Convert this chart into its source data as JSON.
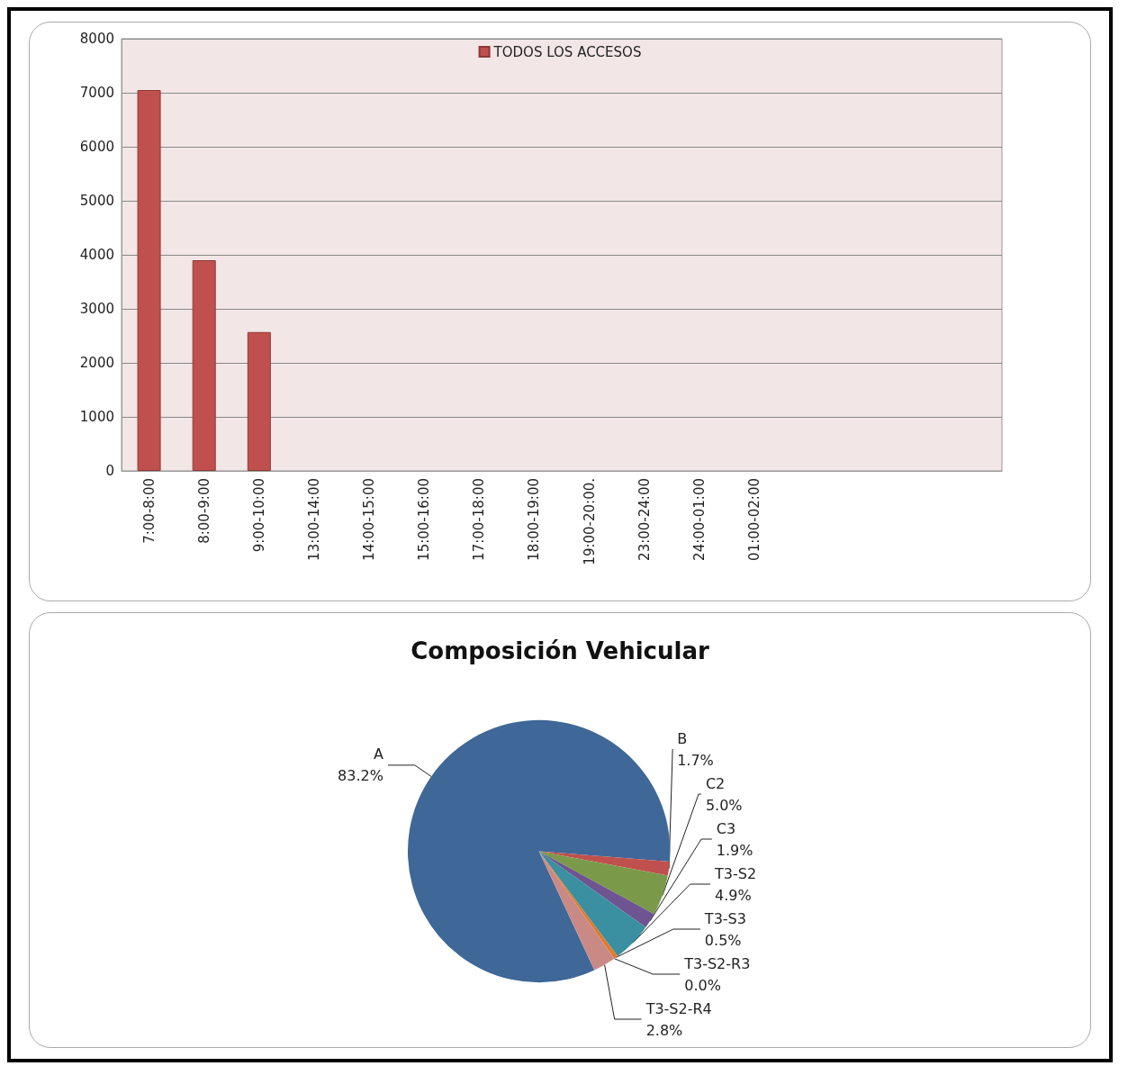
{
  "chart_data": [
    {
      "type": "bar",
      "categories": [
        "7:00-8:00",
        "8:00-9:00",
        "9:00-10:00",
        "13:00-14:00",
        "14:00-15:00",
        "15:00-16:00",
        "17:00-18:00",
        "18:00-19:00",
        "19:00-20:00.",
        "23:00-24:00",
        "24:00-01:00",
        "01:00-02:00",
        null,
        null,
        null,
        null
      ],
      "series": [
        {
          "name": "TODOS LOS ACCESOS",
          "color": "#c0504d",
          "values": [
            7050,
            3900,
            2570,
            null,
            null,
            null,
            null,
            null,
            null,
            null,
            null,
            null,
            null,
            null,
            null,
            null
          ]
        }
      ],
      "ylim": [
        0,
        8000
      ],
      "yticks": [
        0,
        1000,
        2000,
        3000,
        4000,
        5000,
        6000,
        7000,
        8000
      ],
      "grid": "y",
      "legend": "top"
    },
    {
      "type": "pie",
      "title": "Composición Vehicular",
      "categories": [
        "A",
        "B",
        "C2",
        "C3",
        "T3-S2",
        "T3-S3",
        "T3-S2-R3",
        "T3-S2-R4"
      ],
      "values": [
        83.2,
        1.7,
        5.0,
        1.9,
        4.9,
        0.5,
        0.0,
        2.8
      ],
      "value_labels": [
        "83.2%",
        "1.7%",
        "5.0%",
        "1.9%",
        "4.9%",
        "0.5%",
        "0.0%",
        "2.8%"
      ],
      "colors": [
        "#3f6797",
        "#c0504d",
        "#7a9a4a",
        "#6e5490",
        "#3a8fa0",
        "#e07b2a",
        "#2c4d75",
        "#c98a86"
      ]
    }
  ]
}
